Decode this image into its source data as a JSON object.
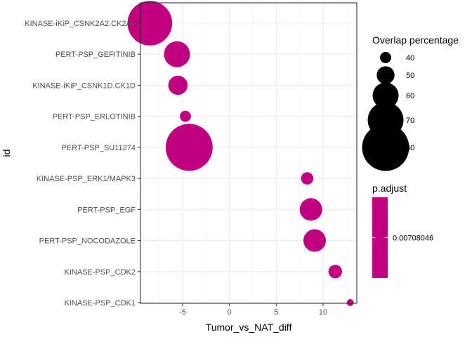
{
  "chart_data": {
    "type": "scatter",
    "xlabel": "Tumor_vs_NAT_diff",
    "ylabel": "id",
    "xlim": [
      -9.5,
      13.6
    ],
    "x_ticks": [
      -5,
      0,
      5,
      10
    ],
    "x_tick_labels": [
      "-5",
      "0",
      "5",
      "10"
    ],
    "grid": true,
    "point_color": "#C0007F",
    "points": [
      {
        "id": "KINASE-iKiP_CSNK2A2.CK2A2",
        "x": -8.5,
        "overlap": 78
      },
      {
        "id": "PERT-PSP_GEFITINIB",
        "x": -5.6,
        "overlap": 60
      },
      {
        "id": "KINASE-iKiP_CSNK1D.CK1D",
        "x": -5.5,
        "overlap": 52
      },
      {
        "id": "PERT-PSP_ERLOTINIB",
        "x": -4.7,
        "overlap": 40
      },
      {
        "id": "PERT-PSP_SU11274",
        "x": -4.3,
        "overlap": 80
      },
      {
        "id": "KINASE-PSP_ERK1/MAPK3",
        "x": 8.3,
        "overlap": 42
      },
      {
        "id": "PERT-PSP_EGF",
        "x": 8.7,
        "overlap": 56
      },
      {
        "id": "PERT-PSP_NOCODAZOLE",
        "x": 9.1,
        "overlap": 56
      },
      {
        "id": "KINASE-PSP_CDK2",
        "x": 11.3,
        "overlap": 44
      },
      {
        "id": "KINASE-PSP_CDK1",
        "x": 12.9,
        "overlap": 32
      }
    ],
    "legend_size": {
      "title": "Overlap percentage",
      "placement": "right",
      "values": [
        40,
        50,
        60,
        70,
        80
      ],
      "labels": [
        "40",
        "50",
        "60",
        "70",
        "80"
      ]
    },
    "legend_color": {
      "title": "p.adjust",
      "placement": "right",
      "labels": [
        "0.00708046"
      ],
      "color": "#C0007F"
    }
  }
}
